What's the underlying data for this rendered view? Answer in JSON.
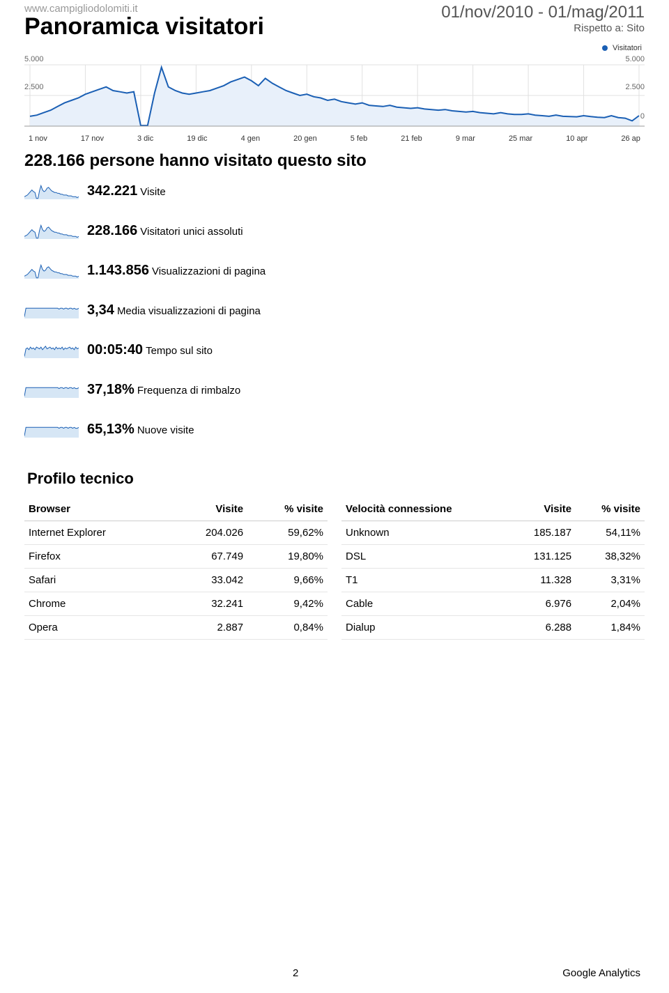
{
  "header": {
    "site_url": "www.campigliodolomiti.it",
    "title": "Panoramica visitatori",
    "date_range": "01/nov/2010 - 01/mag/2011",
    "compare": "Rispetto a: Sito"
  },
  "legend": {
    "label": "Visitatori"
  },
  "main_chart": {
    "type": "line",
    "ylim": [
      0,
      5000
    ],
    "yticks": [
      0,
      2500,
      5000
    ],
    "ytick_labels": [
      "0",
      "2.500",
      "5.000"
    ],
    "line_color": "#1a5fb4",
    "fill_color": "#e8f0fa",
    "grid_color": "#e0e0e0",
    "x_labels": [
      "1 nov",
      "17 nov",
      "3 dic",
      "19 dic",
      "4 gen",
      "20 gen",
      "5 feb",
      "21 feb",
      "9 mar",
      "25 mar",
      "10 apr",
      "26 ap"
    ],
    "values": [
      800,
      900,
      1100,
      1300,
      1600,
      1900,
      2100,
      2300,
      2600,
      2800,
      3000,
      3200,
      2900,
      2800,
      2700,
      2800,
      50,
      50,
      2700,
      4800,
      3200,
      2900,
      2700,
      2600,
      2700,
      2800,
      2900,
      3100,
      3300,
      3600,
      3800,
      4000,
      3700,
      3300,
      3900,
      3500,
      3200,
      2900,
      2700,
      2500,
      2600,
      2400,
      2300,
      2100,
      2200,
      2000,
      1900,
      1800,
      1900,
      1700,
      1650,
      1600,
      1700,
      1550,
      1500,
      1450,
      1500,
      1400,
      1350,
      1300,
      1350,
      1250,
      1200,
      1150,
      1200,
      1100,
      1050,
      1000,
      1100,
      1000,
      950,
      950,
      1000,
      900,
      850,
      800,
      900,
      800,
      780,
      760,
      850,
      780,
      720,
      700,
      850,
      700,
      650,
      430,
      850
    ]
  },
  "headline": {
    "value": "228.166",
    "text": "persone hanno visitato questo sito"
  },
  "metrics": [
    {
      "value": "342.221",
      "label": "Visite",
      "spark_type": "visits"
    },
    {
      "value": "228.166",
      "label": "Visitatori unici assoluti",
      "spark_type": "visits"
    },
    {
      "value": "1.143.856",
      "label": "Visualizzazioni di pagina",
      "spark_type": "visits"
    },
    {
      "value": "3,34",
      "label": "Media visualizzazioni di pagina",
      "spark_type": "flat"
    },
    {
      "value": "00:05:40",
      "label": "Tempo sul sito",
      "spark_type": "jitter"
    },
    {
      "value": "37,18%",
      "label": "Frequenza di rimbalzo",
      "spark_type": "flat"
    },
    {
      "value": "65,13%",
      "label": "Nuove visite",
      "spark_type": "flat"
    }
  ],
  "spark_styles": {
    "line_color": "#1a5fb4",
    "fill_color": "#d6e6f5",
    "visits": [
      3,
      4,
      5,
      7,
      9,
      11,
      9,
      8,
      1,
      1,
      10,
      16,
      11,
      9,
      10,
      13,
      14,
      12,
      10,
      9,
      8,
      8,
      7,
      7,
      6,
      6,
      5,
      5,
      5,
      4,
      4,
      4,
      3,
      3,
      3,
      2,
      3
    ],
    "flat": [
      2,
      12,
      12,
      12,
      12,
      12,
      12,
      12,
      12,
      12,
      12,
      12,
      12,
      12,
      12,
      12,
      12,
      12,
      12,
      12,
      12,
      12,
      12,
      11,
      12,
      12,
      11,
      12,
      12,
      11,
      12,
      12,
      11,
      12,
      11,
      11,
      12
    ],
    "jitter": [
      2,
      11,
      12,
      10,
      13,
      11,
      12,
      10,
      13,
      12,
      11,
      13,
      10,
      12,
      14,
      11,
      12,
      13,
      11,
      12,
      10,
      13,
      11,
      12,
      11,
      13,
      10,
      12,
      11,
      12,
      13,
      11,
      12,
      10,
      13,
      11,
      12
    ]
  },
  "section_title": "Profilo tecnico",
  "browser_table": {
    "columns": [
      "Browser",
      "Visite",
      "% visite"
    ],
    "rows": [
      [
        "Internet Explorer",
        "204.026",
        "59,62%"
      ],
      [
        "Firefox",
        "67.749",
        "19,80%"
      ],
      [
        "Safari",
        "33.042",
        "9,66%"
      ],
      [
        "Chrome",
        "32.241",
        "9,42%"
      ],
      [
        "Opera",
        "2.887",
        "0,84%"
      ]
    ]
  },
  "connection_table": {
    "columns": [
      "Velocità connessione",
      "Visite",
      "% visite"
    ],
    "rows": [
      [
        "Unknown",
        "185.187",
        "54,11%"
      ],
      [
        "DSL",
        "131.125",
        "38,32%"
      ],
      [
        "T1",
        "11.328",
        "3,31%"
      ],
      [
        "Cable",
        "6.976",
        "2,04%"
      ],
      [
        "Dialup",
        "6.288",
        "1,84%"
      ]
    ]
  },
  "footer": {
    "page_num": "2",
    "brand": "Google Analytics"
  }
}
